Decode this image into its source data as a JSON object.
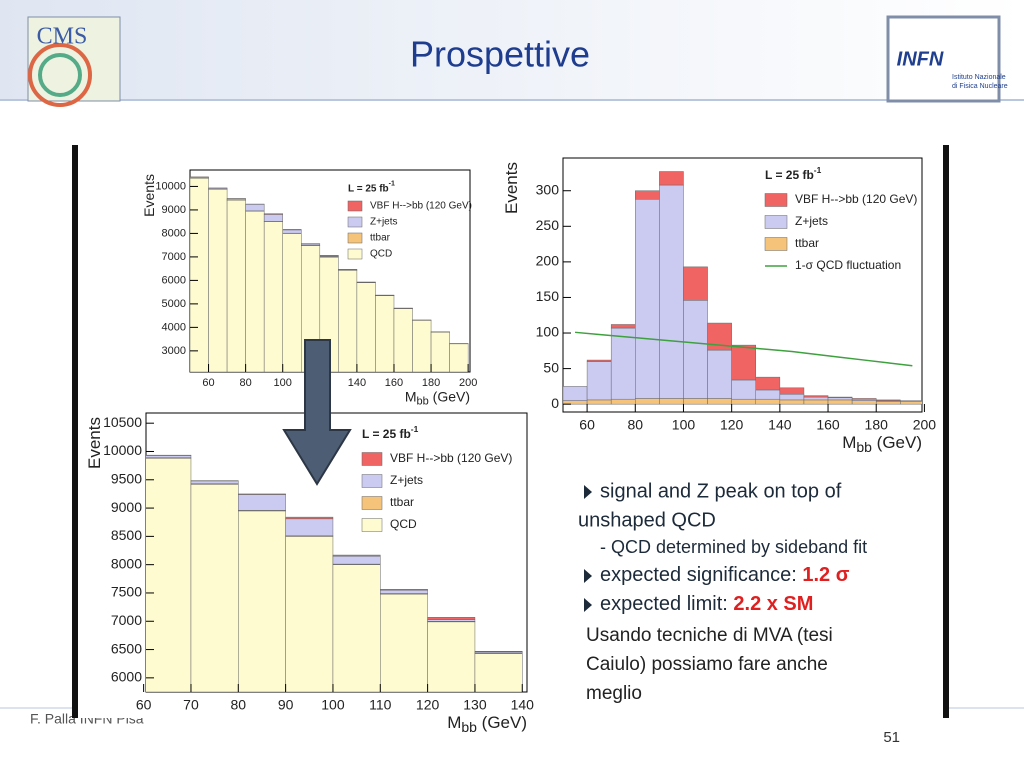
{
  "slide": {
    "title": "Prospettive",
    "logo_left": "CMS",
    "logo_right": "INFN",
    "logo_right_sub": [
      "Istituto Nazionale",
      "di Fisica Nucleare"
    ],
    "footer": "F. Palla INFN Pisa",
    "page_number": "51",
    "bullets": [
      {
        "text": "signal and Z peak on top of"
      },
      {
        "text": "unshaped QCD"
      },
      {
        "text": "- QCD determined by sideband fit"
      },
      {
        "text": "expected significance: ",
        "highlight": "1.2 σ"
      },
      {
        "text": "expected limit: ",
        "highlight": "2.2 x SM"
      }
    ],
    "note": [
      "Usando tecniche di MVA (tesi",
      "Caiulo) possiamo fare anche",
      "meglio"
    ]
  },
  "chart_data": [
    {
      "type": "histogram",
      "lumi": [
        "L = 25 fb",
        "-1"
      ],
      "y_label": "Events",
      "x_label": [
        "M",
        "bb",
        " (GeV)"
      ],
      "bins": [
        50,
        60,
        70,
        80,
        90,
        100,
        110,
        120,
        130,
        140,
        150,
        160,
        170,
        180,
        190,
        200
      ],
      "series": [
        {
          "name": "QCD",
          "color": "#fdfbcf",
          "values": [
            10350,
            9880,
            9420,
            8950,
            8500,
            8000,
            7480,
            6990,
            6430,
            5900,
            5350,
            4800,
            4300,
            3800,
            3300
          ]
        },
        {
          "name": "ttbar",
          "color": "#f6c37a",
          "values": [
            10,
            10,
            10,
            10,
            10,
            10,
            10,
            10,
            10,
            10,
            10,
            10,
            5,
            5,
            5
          ]
        },
        {
          "name": "Z+jets",
          "color": "#cbcbf2",
          "values": [
            40,
            40,
            50,
            280,
            300,
            140,
            60,
            30,
            20,
            15,
            10,
            8,
            6,
            5,
            4
          ]
        },
        {
          "name": "VBF H-->bb (120 GeV)",
          "color": "#f06464",
          "values": [
            5,
            5,
            5,
            10,
            30,
            20,
            15,
            40,
            10,
            5,
            3,
            2,
            2,
            1,
            1
          ]
        }
      ],
      "xlim": [
        50,
        201
      ],
      "ylim": [
        2100,
        10700
      ],
      "xticks": [
        60,
        80,
        100,
        120,
        140,
        160,
        180,
        200
      ],
      "yticks": [
        3000,
        4000,
        5000,
        6000,
        7000,
        8000,
        9000,
        10000
      ]
    },
    {
      "type": "histogram",
      "lumi": [
        "L = 25 fb",
        "-1"
      ],
      "y_label": "Events",
      "x_label": [
        "M",
        "bb",
        " (GeV)"
      ],
      "bins": [
        60,
        70,
        80,
        90,
        100,
        110,
        120,
        130,
        140
      ],
      "series": [
        {
          "name": "QCD",
          "color": "#fdfbcf",
          "values": [
            9880,
            9420,
            8950,
            8500,
            8000,
            7480,
            6990,
            6430
          ]
        },
        {
          "name": "ttbar",
          "color": "#f6c37a",
          "values": [
            10,
            10,
            10,
            10,
            10,
            10,
            10,
            10
          ]
        },
        {
          "name": "Z+jets",
          "color": "#cbcbf2",
          "values": [
            40,
            50,
            280,
            300,
            140,
            60,
            30,
            20
          ]
        },
        {
          "name": "VBF H-->bb (120 GeV)",
          "color": "#f06464",
          "values": [
            5,
            5,
            10,
            30,
            20,
            15,
            40,
            10
          ]
        }
      ],
      "xlim": [
        60.5,
        141
      ],
      "ylim": [
        5750,
        10680
      ],
      "xticks": [
        60,
        70,
        80,
        90,
        100,
        110,
        120,
        130,
        140
      ],
      "yticks": [
        6000,
        6500,
        7000,
        7500,
        8000,
        8500,
        9000,
        9500,
        10000,
        10500
      ]
    },
    {
      "type": "histogram",
      "lumi": [
        "L = 25 fb",
        "-1"
      ],
      "y_label": "Events",
      "x_label": [
        "M",
        "bb",
        " (GeV)"
      ],
      "bins": [
        50,
        60,
        70,
        80,
        90,
        100,
        110,
        120,
        130,
        140,
        150,
        160,
        170,
        180,
        190,
        200
      ],
      "series": [
        {
          "name": "ttbar",
          "color": "#f6c37a",
          "values": [
            5,
            6,
            7,
            8,
            8,
            8,
            8,
            7,
            7,
            6,
            6,
            6,
            5,
            4,
            4
          ]
        },
        {
          "name": "Z+jets",
          "color": "#cbcbf2",
          "values": [
            20,
            54,
            100,
            280,
            300,
            138,
            68,
            27,
            13,
            8,
            4,
            3,
            2,
            1,
            1
          ]
        },
        {
          "name": "VBF H-->bb (120 GeV)",
          "color": "#f06464",
          "values": [
            0,
            2,
            5,
            12,
            19,
            47,
            38,
            49,
            18,
            9,
            2,
            1,
            1,
            1,
            0
          ]
        }
      ],
      "line": {
        "name": "1-σ QCD fluctuation",
        "color": "#3fa040",
        "values": [
          101,
          98,
          95,
          92,
          89,
          86,
          83,
          80,
          77,
          74,
          70,
          66,
          62,
          58,
          54
        ]
      },
      "xlim": [
        50,
        199
      ],
      "ylim": [
        -11,
        346
      ],
      "xticks": [
        60,
        80,
        100,
        120,
        140,
        160,
        180,
        200
      ],
      "yticks": [
        0,
        50,
        100,
        150,
        200,
        250,
        300
      ]
    }
  ]
}
